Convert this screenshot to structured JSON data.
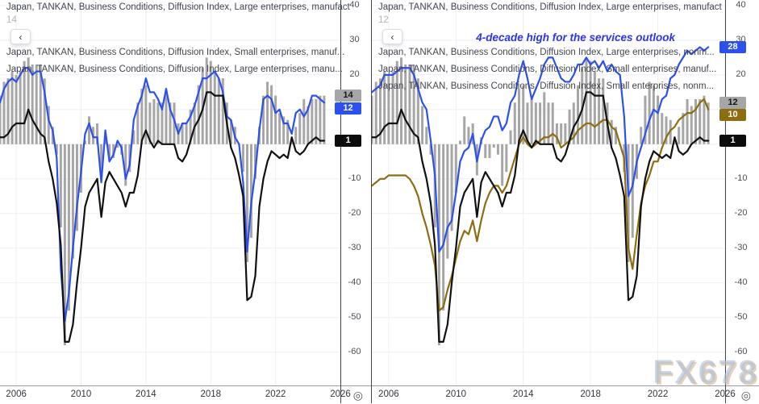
{
  "watermark": "FX678",
  "icons": {
    "back_glyph": "‹",
    "axis_corner_glyph": "◎"
  },
  "panes": [
    {
      "title": "Japan, TANKAN, Business Conditions, Diffusion Index, Large enterprises, manufact",
      "value": "14",
      "legends": [
        "Japan, TANKAN, Business Conditions, Diffusion Index, Small enterprises, manuf...",
        "Japan, TANKAN, Business Conditions, Diffusion Index, Large enterprises, manu..."
      ],
      "badges": [
        {
          "label": "14",
          "value": 14,
          "bg": "#a6a6a6",
          "fg": "#16171a",
          "dy": 0
        },
        {
          "label": "12",
          "value": 12,
          "bg": "#2c50ee",
          "fg": "#ffffff",
          "dy": 7
        },
        {
          "label": "1",
          "value": 1,
          "bg": "#0c0c0d",
          "fg": "#ffffff",
          "dy": 0
        }
      ]
    },
    {
      "title": "Japan, TANKAN, Business Conditions, Diffusion Index, Large enterprises, manufact",
      "value": "12",
      "annotation": "4-decade high for the services outlook",
      "legends": [
        "Japan, TANKAN, Business Conditions, Diffusion Index, Large enterprises, nonm...",
        "Japan, TANKAN, Business Conditions, Diffusion Index, Small enterprises, manuf...",
        "Japan, TANKAN, Business Conditions, Diffusion Index, Small enterprises, nonm..."
      ],
      "badges": [
        {
          "label": "28",
          "value": 28,
          "bg": "#2c50ee",
          "fg": "#ffffff",
          "dy": 0
        },
        {
          "label": "12",
          "value": 12,
          "bg": "#a6a6a6",
          "fg": "#16171a",
          "dy": 0
        },
        {
          "label": "10",
          "value": 10,
          "bg": "#8e6d12",
          "fg": "#ffffff",
          "dy": 7
        },
        {
          "label": "1",
          "value": 1,
          "bg": "#0c0c0d",
          "fg": "#ffffff",
          "dy": 0
        }
      ]
    }
  ],
  "chart_data": [
    {
      "type": "mixed",
      "title": "Japan, TANKAN, Business Conditions, Diffusion Index, Large enterprises, manufact",
      "x_start": 2005,
      "x_step": 0.25,
      "xlim": [
        2005,
        2026
      ],
      "ylim": [
        -69.6,
        41.6
      ],
      "x_ticks": [
        2006,
        2010,
        2014,
        2018,
        2022,
        2026
      ],
      "y_ticks": [
        40,
        30,
        20,
        10,
        0,
        -10,
        -20,
        -30,
        -40,
        -50,
        -60
      ],
      "grid": true,
      "legend_position": "top-left",
      "series": [
        {
          "name": "Large enterprises, manufact",
          "type": "bar",
          "color": "#a6a6a6",
          "last": 14,
          "values": [
            14,
            18,
            19,
            21,
            20,
            21,
            24,
            25,
            23,
            23,
            23,
            19,
            11,
            5,
            -3,
            -24,
            -58,
            -48,
            -33,
            -25,
            -14,
            1,
            8,
            5,
            6,
            -9,
            2,
            -4,
            -4,
            -1,
            -3,
            -12,
            -8,
            4,
            12,
            16,
            17,
            12,
            13,
            12,
            12,
            15,
            12,
            12,
            6,
            6,
            6,
            10,
            12,
            17,
            22,
            25,
            24,
            21,
            19,
            19,
            12,
            7,
            5,
            0,
            -8,
            -34,
            -27,
            -10,
            5,
            14,
            18,
            17,
            14,
            9,
            8,
            7,
            1,
            5,
            9,
            13,
            11,
            13,
            13,
            14,
            14
          ]
        },
        {
          "name": "Large enterprises, manu...",
          "type": "line",
          "color": "#2c50ee",
          "last": 12,
          "values": [
            12,
            16,
            18,
            19,
            18,
            20,
            22,
            22,
            20,
            21,
            21,
            15,
            7,
            4,
            -4,
            -36,
            -51,
            -43,
            -30,
            -18,
            -8,
            3,
            6,
            2,
            2,
            -11,
            4,
            -5,
            -3,
            1,
            -1,
            -10,
            -6,
            7,
            11,
            14,
            19,
            15,
            15,
            13,
            10,
            16,
            10,
            7,
            3,
            6,
            6,
            8,
            11,
            15,
            19,
            19,
            20,
            21,
            19,
            15,
            8,
            7,
            2,
            0,
            -11,
            -31,
            -17,
            -8,
            4,
            13,
            14,
            13,
            9,
            10,
            6,
            6,
            3,
            9,
            10,
            8,
            10,
            14,
            14,
            13,
            12
          ]
        },
        {
          "name": "Small enterprises, manuf...",
          "type": "line",
          "color": "#111111",
          "last": 1,
          "values": [
            2,
            2,
            3,
            5,
            6,
            6,
            6,
            10,
            7,
            5,
            3,
            2,
            -5,
            -10,
            -17,
            -29,
            -57,
            -57,
            -52,
            -40,
            -30,
            -18,
            -14,
            -12,
            -10,
            -21,
            -11,
            -8,
            -10,
            -12,
            -14,
            -18,
            -14,
            -14,
            -9,
            1,
            4,
            1,
            -1,
            1,
            0,
            0,
            0,
            0,
            -4,
            -5,
            -3,
            1,
            5,
            7,
            10,
            15,
            15,
            14,
            14,
            14,
            6,
            -1,
            -4,
            -9,
            -15,
            -45,
            -44,
            -38,
            -18,
            -10,
            -5,
            -2,
            -3,
            -4,
            -3,
            -4,
            2,
            -2,
            -3,
            -2,
            0,
            1,
            2,
            1,
            1
          ]
        }
      ]
    },
    {
      "type": "mixed",
      "title": "Japan, TANKAN, Business Conditions, Diffusion Index, Large enterprises, manufact",
      "annotation": "4-decade high for the services outlook",
      "x_start": 2005,
      "x_step": 0.25,
      "xlim": [
        2005,
        2026
      ],
      "ylim": [
        -69.6,
        41.6
      ],
      "x_ticks": [
        2006,
        2010,
        2014,
        2018,
        2022,
        2026
      ],
      "y_ticks": [
        40,
        30,
        20,
        10,
        0,
        -10,
        -20,
        -30,
        -40,
        -50,
        -60
      ],
      "grid": true,
      "legend_position": "top-left",
      "series": [
        {
          "name": "Large enterprises, manufact",
          "type": "bar",
          "color": "#a6a6a6",
          "last": 12,
          "values": [
            14,
            18,
            19,
            21,
            20,
            21,
            24,
            25,
            23,
            23,
            23,
            19,
            11,
            5,
            -3,
            -24,
            -58,
            -48,
            -33,
            -25,
            -14,
            1,
            8,
            5,
            6,
            -9,
            2,
            -4,
            -4,
            -1,
            -3,
            -12,
            -8,
            4,
            12,
            16,
            17,
            12,
            13,
            12,
            12,
            15,
            12,
            12,
            6,
            6,
            6,
            10,
            12,
            17,
            22,
            25,
            24,
            21,
            19,
            19,
            12,
            7,
            5,
            0,
            -8,
            -34,
            -27,
            -10,
            5,
            14,
            18,
            17,
            14,
            9,
            8,
            7,
            1,
            5,
            9,
            13,
            11,
            13,
            13,
            14,
            12
          ]
        },
        {
          "name": "Large enterprises, nonm...",
          "type": "line",
          "color": "#2c50ee",
          "last": 28,
          "values": [
            15,
            16,
            17,
            20,
            20,
            20,
            21,
            22,
            22,
            22,
            20,
            16,
            12,
            10,
            1,
            -9,
            -31,
            -29,
            -24,
            -22,
            -14,
            -5,
            -2,
            -1,
            3,
            -5,
            1,
            4,
            5,
            8,
            8,
            4,
            6,
            12,
            14,
            20,
            24,
            19,
            13,
            16,
            19,
            23,
            25,
            25,
            22,
            19,
            18,
            18,
            20,
            23,
            23,
            25,
            23,
            24,
            22,
            24,
            21,
            23,
            21,
            20,
            8,
            -15,
            -12,
            -5,
            -1,
            3,
            7,
            10,
            9,
            13,
            14,
            19,
            20,
            23,
            25,
            27,
            26,
            27,
            28,
            27,
            28
          ]
        },
        {
          "name": "Small enterprises, nonm...",
          "type": "line",
          "color": "#8e6d12",
          "last": 10,
          "values": [
            -12,
            -11,
            -10,
            -10,
            -9,
            -9,
            -9,
            -9,
            -9,
            -10,
            -12,
            -15,
            -20,
            -24,
            -29,
            -35,
            -48,
            -47,
            -42,
            -38,
            -33,
            -28,
            -25,
            -26,
            -22,
            -28,
            -22,
            -17,
            -14,
            -12,
            -12,
            -14,
            -12,
            -8,
            -4,
            0,
            2,
            0,
            -1,
            0,
            1,
            2,
            2,
            3,
            2,
            -1,
            0,
            1,
            2,
            4,
            5,
            6,
            6,
            5,
            6,
            7,
            7,
            5,
            4,
            0,
            -4,
            -30,
            -36,
            -26,
            -17,
            -12,
            -9,
            -5,
            -5,
            -1,
            2,
            4,
            5,
            7,
            8,
            9,
            9,
            10,
            12,
            13,
            10
          ]
        },
        {
          "name": "Small enterprises, manuf...",
          "type": "line",
          "color": "#111111",
          "last": 1,
          "values": [
            2,
            2,
            3,
            5,
            6,
            6,
            6,
            10,
            7,
            5,
            3,
            2,
            -5,
            -10,
            -17,
            -29,
            -57,
            -57,
            -52,
            -40,
            -30,
            -18,
            -14,
            -12,
            -10,
            -21,
            -11,
            -8,
            -10,
            -12,
            -14,
            -18,
            -14,
            -14,
            -9,
            1,
            4,
            1,
            -1,
            1,
            0,
            0,
            0,
            0,
            -4,
            -5,
            -3,
            1,
            5,
            7,
            10,
            15,
            15,
            14,
            14,
            14,
            6,
            -1,
            -4,
            -9,
            -15,
            -45,
            -44,
            -38,
            -18,
            -10,
            -5,
            -2,
            -3,
            -4,
            -3,
            -4,
            2,
            -2,
            -3,
            -2,
            0,
            1,
            2,
            1,
            1
          ]
        }
      ]
    }
  ]
}
